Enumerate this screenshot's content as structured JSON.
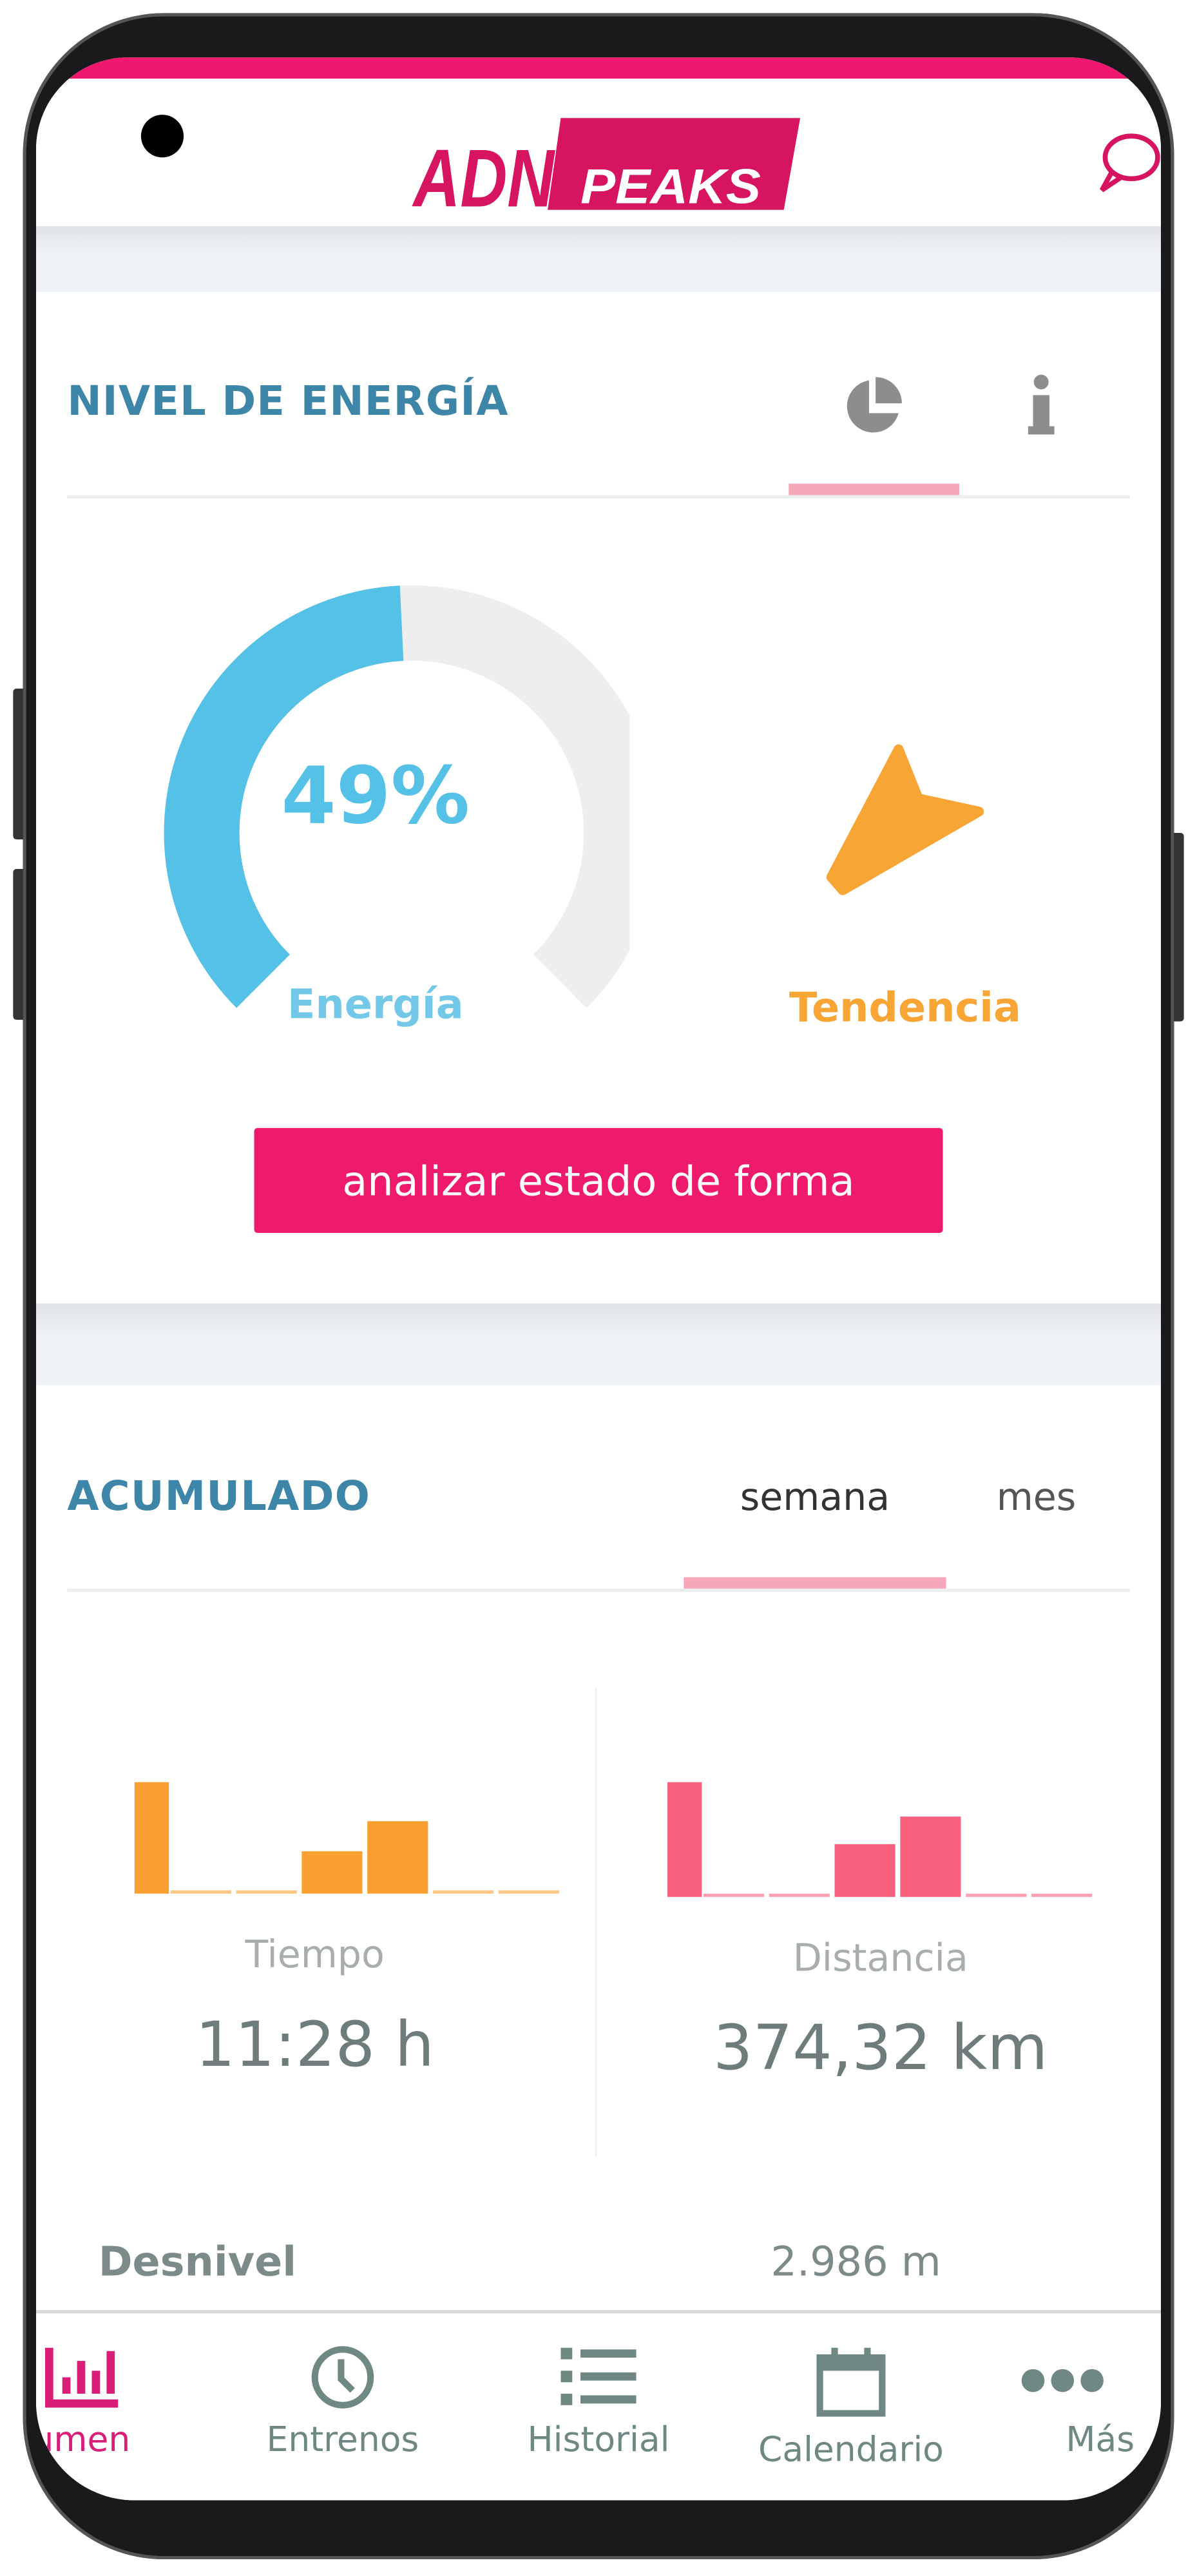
{
  "app": {
    "logo_text": "ADN PEAKS",
    "brand_color": "#f0186e",
    "chat_icon": "chat-bubble-icon"
  },
  "energy": {
    "title": "NIVEL DE ENERGÍA",
    "tabs": [
      {
        "icon": "pie-chart-icon",
        "active": true
      },
      {
        "icon": "info-icon",
        "active": false
      }
    ],
    "gauge_percent": 49,
    "gauge_label": "49%",
    "energy_label": "Energía",
    "trend_label": "Tendencia",
    "trend_icon": "trend-arrow-icon",
    "colors": {
      "energy": "#55c1e6",
      "trend": "#f7a535"
    },
    "analyze_button": "analizar estado de forma"
  },
  "accumulated": {
    "title": "ACUMULADO",
    "tabs": [
      {
        "label": "semana",
        "active": true
      },
      {
        "label": "mes",
        "active": false
      }
    ],
    "time": {
      "label": "Tiempo",
      "value": "11:28 h",
      "color": "#f9a030",
      "bars": [
        100,
        0,
        0,
        38,
        65,
        0,
        0
      ]
    },
    "distance": {
      "label": "Distancia",
      "value": "374,32 km",
      "color": "#f8607f",
      "bars": [
        100,
        0,
        0,
        46,
        70,
        0,
        0
      ]
    },
    "elevation": {
      "label": "Desnivel",
      "value": "2.986 m"
    }
  },
  "bottom_nav": {
    "items": [
      {
        "label": "sumen",
        "icon": "bar-chart-icon",
        "active": true
      },
      {
        "label": "Entrenos",
        "icon": "clock-icon"
      },
      {
        "label": "Historial",
        "icon": "list-icon"
      },
      {
        "label": "Calendario",
        "icon": "calendar-icon"
      },
      {
        "label": "Más",
        "icon": "more-icon"
      }
    ]
  }
}
